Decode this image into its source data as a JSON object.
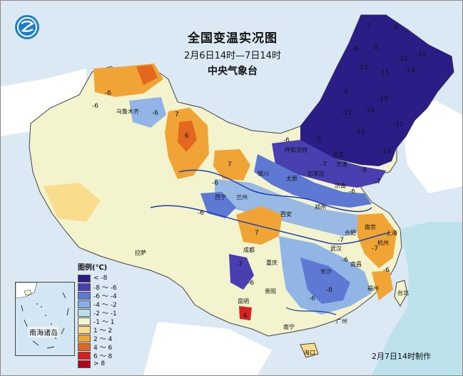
{
  "header": {
    "title": "全国变温实况图",
    "time_range": "2月6日14时—7日14时",
    "agency": "中央气象台"
  },
  "legend": {
    "title": "图例(℃)",
    "items": [
      {
        "label": "< -8",
        "color": "#2a1e86"
      },
      {
        "label": "-8 ～ -6",
        "color": "#4a3fb0"
      },
      {
        "label": "-6 ～ -4",
        "color": "#5e79d4"
      },
      {
        "label": "-4 ～ -2",
        "color": "#86aee8"
      },
      {
        "label": "-2 ～ -1",
        "color": "#b6e0ea"
      },
      {
        "label": "-1 ～ 1",
        "color": "#f3f4cd"
      },
      {
        "label": "1 ～ 2",
        "color": "#f9dd8c"
      },
      {
        "label": "2 ～ 4",
        "color": "#f0a436"
      },
      {
        "label": "4 ～ 6",
        "color": "#e3671e"
      },
      {
        "label": "6 ～ 8",
        "color": "#d6221e"
      },
      {
        "label": "> 8",
        "color": "#b4001c"
      }
    ]
  },
  "inset_label": "南海诸岛",
  "footer": "2月7日14时制作",
  "cities": [
    "乌鲁木齐",
    "西宁",
    "兰州",
    "银川",
    "呼和浩特",
    "北京",
    "天津",
    "石家庄",
    "太原",
    "济南",
    "郑州",
    "西安",
    "成都",
    "重庆",
    "贵阳",
    "昆明",
    "拉萨",
    "南宁",
    "广州",
    "海口",
    "武汉",
    "长沙",
    "南昌",
    "合肥",
    "南京",
    "上海",
    "杭州",
    "福州",
    "台北"
  ],
  "values": [
    "-6",
    "-6",
    "-6",
    "7",
    "6",
    "7",
    "-6",
    "-7",
    "-6",
    "-8",
    "-9",
    "-12",
    "-13",
    "-14",
    "-15",
    "-12",
    "-9",
    "-16",
    "-17",
    "-18",
    "-11",
    "-10",
    "-11",
    "-9",
    "-7",
    "-8",
    "-6",
    "-7",
    "-6",
    "7",
    "-7",
    "-6",
    "-7",
    "-6",
    "-8",
    "-6",
    "-7",
    "-6",
    "6",
    "-6"
  ]
}
